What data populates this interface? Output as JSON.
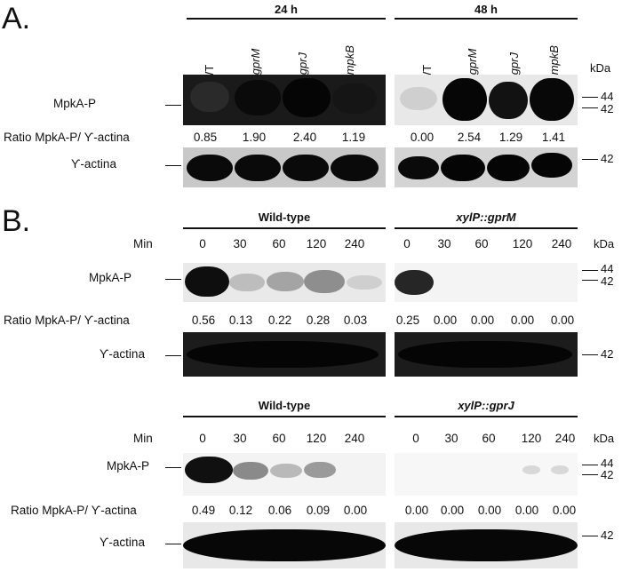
{
  "panelA": {
    "letter": "A.",
    "group_24h": "24 h",
    "group_48h": "48 h",
    "lanes_24h": [
      "WT",
      "ΔgprM",
      "ΔgprJ",
      "ΔmpkB"
    ],
    "lanes_48h": [
      "WT",
      "ΔgprM",
      "ΔgprJ",
      "ΔmpkB"
    ],
    "kda_label": "kDa",
    "row_mpka": "MpkA-P",
    "row_ratio": "Ratio MpkA-P/ Ƴ-actina",
    "row_actin": "Ƴ-actina",
    "marker_44": "44",
    "marker_42": "42",
    "marker_actin_42": "42",
    "ratios_24h": [
      "0.85",
      "1.90",
      "2.40",
      "1.19"
    ],
    "ratios_48h": [
      "0.00",
      "2.54",
      "1.29",
      "1.41"
    ]
  },
  "panelB": {
    "letter": "B.",
    "top": {
      "left_title": "Wild-type",
      "right_title": "xylP::gprM",
      "min_label": "Min",
      "kda_label": "kDa",
      "times_left": [
        "0",
        "30",
        "60",
        "120",
        "240"
      ],
      "times_right": [
        "0",
        "30",
        "60",
        "120",
        "240"
      ],
      "row_mpka": "MpkA-P",
      "row_ratio": "Ratio MpkA-P/ Ƴ-actina",
      "row_actin": "Ƴ-actina",
      "marker_44": "44",
      "marker_42": "42",
      "marker_actin_42": "42",
      "ratios_left": [
        "0.56",
        "0.13",
        "0.22",
        "0.28",
        "0.03"
      ],
      "ratios_right": [
        "0.25",
        "0.00",
        "0.00",
        "0.00",
        "0.00"
      ]
    },
    "bottom": {
      "left_title": "Wild-type",
      "right_title": "xylP::gprJ",
      "min_label": "Min",
      "kda_label": "kDa",
      "times_left": [
        "0",
        "30",
        "60",
        "120",
        "240"
      ],
      "times_right": [
        "0",
        "30",
        "60",
        "120",
        "240"
      ],
      "row_mpka": "MpkA-P",
      "row_ratio": "Ratio MpkA-P/ Ƴ-actina",
      "row_actin": "Ƴ-actina",
      "marker_44": "44",
      "marker_42": "42",
      "marker_actin_42": "42",
      "ratios_left": [
        "0.49",
        "0.12",
        "0.06",
        "0.09",
        "0.00"
      ],
      "ratios_right": [
        "0.00",
        "0.00",
        "0.00",
        "0.00",
        "0.00"
      ]
    }
  }
}
